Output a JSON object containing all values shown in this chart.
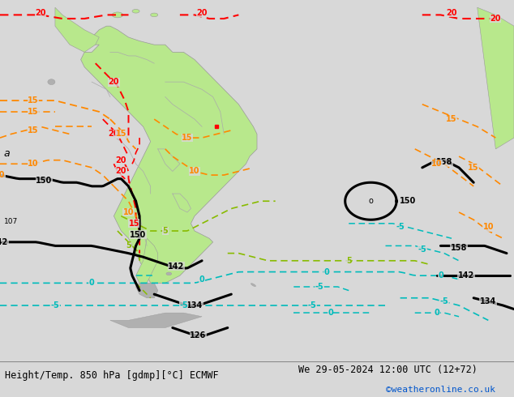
{
  "title_left": "Height/Temp. 850 hPa [gdmp][°C] ECMWF",
  "title_right": "We 29-05-2024 12:00 UTC (12+72)",
  "watermark": "©weatheronline.co.uk",
  "background_color": "#d8d8d8",
  "land_color": "#b8e88c",
  "ocean_color": "#d8d8d8",
  "gray_land": "#b0b0b0",
  "geo_color": "#000000",
  "geo_lw": 2.2,
  "red_color": "#ff0000",
  "orange_color": "#ff8800",
  "green_color": "#88bb00",
  "cyan_color": "#00bbbb",
  "text_color_left": "#000000",
  "text_color_right": "#000000",
  "text_color_watermark": "#0055cc",
  "figsize": [
    6.34,
    4.9
  ],
  "dpi": 100,
  "xlim": [
    -105,
    35
  ],
  "ylim": [
    -75,
    22
  ]
}
